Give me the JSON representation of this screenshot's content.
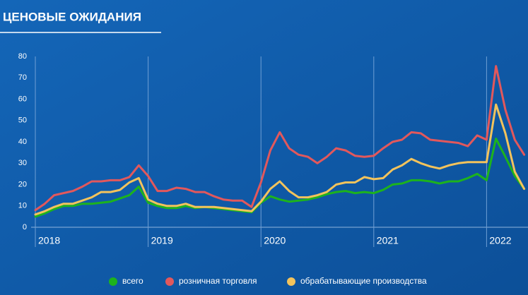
{
  "chart_data": {
    "type": "line",
    "title": "ЦЕНОВЫЕ ОЖИДАНИЯ",
    "categories": [
      "2018",
      null,
      null,
      null,
      null,
      null,
      null,
      null,
      null,
      null,
      null,
      null,
      "2019",
      null,
      null,
      null,
      null,
      null,
      null,
      null,
      null,
      null,
      null,
      null,
      "2020",
      null,
      null,
      null,
      null,
      null,
      null,
      null,
      null,
      null,
      null,
      null,
      "2021",
      null,
      null,
      null,
      null,
      null,
      null,
      null,
      null,
      null,
      null,
      null,
      "2022",
      null,
      null,
      null,
      null
    ],
    "ylim": [
      0,
      80
    ],
    "yticks": [
      0,
      10,
      20,
      30,
      40,
      50,
      60,
      70,
      80
    ],
    "grid": false,
    "legend": "bottom",
    "series": [
      {
        "name": "всего",
        "color": "#1db31d",
        "values": [
          5,
          6.5,
          8.5,
          10,
          10,
          11,
          11,
          11.5,
          12,
          13.5,
          15,
          19,
          11.5,
          10,
          9,
          9,
          10,
          9,
          9.5,
          9,
          8.5,
          8,
          7.5,
          7,
          11.5,
          14.5,
          13,
          12,
          12.5,
          13,
          14,
          15.5,
          16.5,
          17,
          16,
          16.5,
          16,
          17.5,
          20,
          20.5,
          22,
          22,
          21.5,
          20.5,
          21.5,
          21.5,
          23,
          25,
          22,
          41.5,
          33,
          24,
          18
        ]
      },
      {
        "name": "розничная торговля",
        "color": "#e2585c",
        "values": [
          8,
          11,
          15,
          16,
          17,
          19,
          21.5,
          21.5,
          22,
          22,
          23.5,
          29,
          24,
          17,
          17,
          18.5,
          18,
          16.5,
          16.5,
          14.5,
          13,
          12.5,
          12.5,
          9.5,
          21,
          36,
          44.5,
          37,
          34,
          33,
          30,
          33,
          37,
          36,
          33.5,
          33,
          33.5,
          37,
          40,
          41,
          44.5,
          44,
          41,
          40.5,
          40,
          39.5,
          38,
          43,
          41,
          75.5,
          55,
          41,
          34
        ]
      },
      {
        "name": "обрабатывающие производства",
        "color": "#f3c35c",
        "values": [
          6,
          7.5,
          9.5,
          11,
          11,
          12.5,
          14,
          16.5,
          16.5,
          17.5,
          21,
          23,
          13,
          11,
          10,
          10,
          11,
          9.5,
          9.5,
          9.5,
          9,
          8.5,
          8,
          7.5,
          12,
          18,
          21.5,
          17,
          14,
          14,
          15,
          16.5,
          20,
          21,
          21,
          23.5,
          22.5,
          23,
          27,
          29,
          32,
          30,
          28.5,
          27.5,
          29,
          30,
          30.5,
          30.5,
          30.5,
          57.5,
          44,
          26,
          18
        ]
      }
    ]
  }
}
